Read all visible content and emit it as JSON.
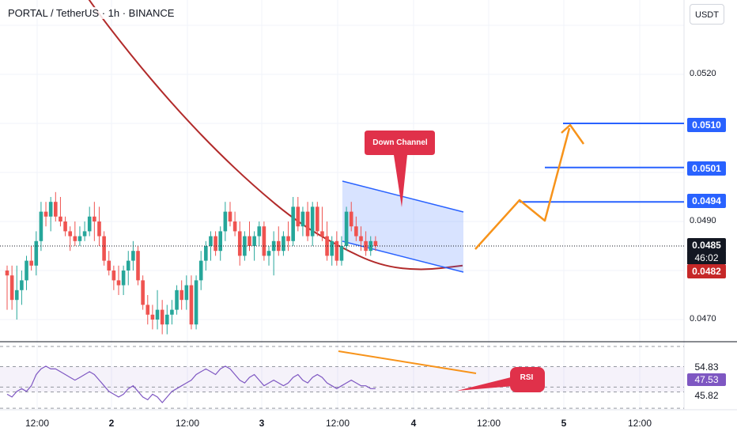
{
  "header": {
    "title": "PORTAL / TetherUS · 1h · BINANCE"
  },
  "currency_button": {
    "label": "USDT"
  },
  "price_axis": {
    "ticks": [
      {
        "value": 0.052,
        "label": "0.0520"
      },
      {
        "value": 0.049,
        "label": "0.0490"
      },
      {
        "value": 0.047,
        "label": "0.0470"
      }
    ],
    "tags": [
      {
        "label": "0.0510",
        "value": 0.051,
        "color": "#2962ff"
      },
      {
        "label": "0.0501",
        "value": 0.0501,
        "color": "#2962ff"
      },
      {
        "label": "0.0494",
        "value": 0.0494,
        "color": "#2962ff"
      },
      {
        "label": "0.0485",
        "value": 0.0485,
        "color": "#131722"
      },
      {
        "label": "0.0482",
        "value": 0.0482,
        "color": "#c62828"
      }
    ],
    "countdown": "46:02"
  },
  "time_axis": {
    "labels": [
      {
        "label": "12:00",
        "bold": false
      },
      {
        "label": "2",
        "bold": true
      },
      {
        "label": "12:00",
        "bold": false
      },
      {
        "label": "3",
        "bold": true
      },
      {
        "label": "12:00",
        "bold": false
      },
      {
        "label": "4",
        "bold": true
      },
      {
        "label": "12:00",
        "bold": false
      },
      {
        "label": "5",
        "bold": true
      },
      {
        "label": "12:00",
        "bold": false
      }
    ]
  },
  "annotations": {
    "down_channel": "Down Channel",
    "rsi": "RSI"
  },
  "rsi_axis": {
    "labels": [
      {
        "label": "54.83",
        "value": 54.83
      },
      {
        "label": "47.53",
        "value": 47.53,
        "highlight": true
      },
      {
        "label": "45.82",
        "value": 45.82
      }
    ]
  },
  "colors": {
    "bull": "#26a69a",
    "bear": "#ef5350",
    "ma": "#b22b2b",
    "channel": "#2962ff",
    "projection": "#f7931a",
    "rsi_line": "#7e57c2",
    "callout": "#e0314a"
  },
  "chart_data": {
    "type": "candlestick",
    "title": "PORTAL / TetherUS · 1h · BINANCE",
    "ylim": [
      0.0467,
      0.0535
    ],
    "ohlc": [
      [
        0.048,
        0.0481,
        0.0472,
        0.0479
      ],
      [
        0.0479,
        0.0481,
        0.0472,
        0.0474
      ],
      [
        0.0474,
        0.0481,
        0.047,
        0.0476
      ],
      [
        0.0476,
        0.048,
        0.0473,
        0.0478
      ],
      [
        0.0478,
        0.0483,
        0.0476,
        0.0482
      ],
      [
        0.0482,
        0.0485,
        0.048,
        0.0481
      ],
      [
        0.0481,
        0.0488,
        0.0479,
        0.0486
      ],
      [
        0.0486,
        0.0494,
        0.0484,
        0.0492
      ],
      [
        0.0492,
        0.0494,
        0.0489,
        0.0491
      ],
      [
        0.0491,
        0.0495,
        0.0488,
        0.0494
      ],
      [
        0.0494,
        0.0496,
        0.049,
        0.0491
      ],
      [
        0.0491,
        0.0495,
        0.0489,
        0.049
      ],
      [
        0.049,
        0.0491,
        0.0487,
        0.0488
      ],
      [
        0.0488,
        0.0489,
        0.0484,
        0.0487
      ],
      [
        0.0487,
        0.049,
        0.0485,
        0.0486
      ],
      [
        0.0486,
        0.0489,
        0.0485,
        0.0487
      ],
      [
        0.0487,
        0.049,
        0.0486,
        0.0488
      ],
      [
        0.0488,
        0.0493,
        0.0487,
        0.0491
      ],
      [
        0.0491,
        0.0494,
        0.0486,
        0.049
      ],
      [
        0.049,
        0.0493,
        0.0485,
        0.0487
      ],
      [
        0.0487,
        0.0488,
        0.0481,
        0.0482
      ],
      [
        0.0482,
        0.0484,
        0.0479,
        0.048
      ],
      [
        0.048,
        0.0481,
        0.0476,
        0.0478
      ],
      [
        0.0478,
        0.0481,
        0.0475,
        0.0477
      ],
      [
        0.0477,
        0.0481,
        0.0475,
        0.048
      ],
      [
        0.048,
        0.0484,
        0.0477,
        0.0482
      ],
      [
        0.0482,
        0.0486,
        0.048,
        0.0484
      ],
      [
        0.0484,
        0.0485,
        0.0477,
        0.0478
      ],
      [
        0.0478,
        0.0479,
        0.0472,
        0.0473
      ],
      [
        0.0473,
        0.0475,
        0.0469,
        0.0471
      ],
      [
        0.0471,
        0.0473,
        0.0468,
        0.047
      ],
      [
        0.047,
        0.0476,
        0.0468,
        0.0472
      ],
      [
        0.0472,
        0.0474,
        0.0467,
        0.0469
      ],
      [
        0.0469,
        0.0473,
        0.0467,
        0.0471
      ],
      [
        0.0471,
        0.0474,
        0.0469,
        0.0472
      ],
      [
        0.0472,
        0.0477,
        0.0471,
        0.0476
      ],
      [
        0.0476,
        0.0478,
        0.0472,
        0.0474
      ],
      [
        0.0474,
        0.0479,
        0.0472,
        0.0477
      ],
      [
        0.0477,
        0.0479,
        0.0468,
        0.0469
      ],
      [
        0.0469,
        0.0479,
        0.0468,
        0.0478
      ],
      [
        0.0478,
        0.0484,
        0.0476,
        0.0482
      ],
      [
        0.0482,
        0.0486,
        0.048,
        0.0485
      ],
      [
        0.0485,
        0.0488,
        0.0482,
        0.0487
      ],
      [
        0.0487,
        0.0488,
        0.0483,
        0.0484
      ],
      [
        0.0484,
        0.0489,
        0.0482,
        0.0488
      ],
      [
        0.0488,
        0.0494,
        0.0486,
        0.0492
      ],
      [
        0.0492,
        0.0494,
        0.0489,
        0.049
      ],
      [
        0.049,
        0.0492,
        0.0487,
        0.0488
      ],
      [
        0.0488,
        0.049,
        0.0481,
        0.0483
      ],
      [
        0.0483,
        0.0488,
        0.0482,
        0.0487
      ],
      [
        0.0487,
        0.049,
        0.0484,
        0.0485
      ],
      [
        0.0485,
        0.0488,
        0.0482,
        0.0487
      ],
      [
        0.0487,
        0.049,
        0.0485,
        0.0489
      ],
      [
        0.0489,
        0.049,
        0.0482,
        0.0483
      ],
      [
        0.0483,
        0.0485,
        0.0481,
        0.0484
      ],
      [
        0.0484,
        0.0488,
        0.0479,
        0.0486
      ],
      [
        0.0486,
        0.0489,
        0.0483,
        0.0484
      ],
      [
        0.0484,
        0.0488,
        0.0483,
        0.0487
      ],
      [
        0.0487,
        0.049,
        0.0484,
        0.0486
      ],
      [
        0.0486,
        0.0495,
        0.0485,
        0.0493
      ],
      [
        0.0493,
        0.0495,
        0.0488,
        0.0489
      ],
      [
        0.0489,
        0.0493,
        0.0487,
        0.0492
      ],
      [
        0.0492,
        0.0494,
        0.0486,
        0.0487
      ],
      [
        0.0487,
        0.0494,
        0.0485,
        0.0493
      ],
      [
        0.0493,
        0.0494,
        0.0487,
        0.0488
      ],
      [
        0.0488,
        0.0493,
        0.0486,
        0.0487
      ],
      [
        0.0487,
        0.049,
        0.0482,
        0.0483
      ],
      [
        0.0483,
        0.0487,
        0.0481,
        0.0486
      ],
      [
        0.0486,
        0.0488,
        0.0481,
        0.0482
      ],
      [
        0.0482,
        0.0487,
        0.0481,
        0.0485
      ],
      [
        0.0485,
        0.0493,
        0.0484,
        0.0492
      ],
      [
        0.0492,
        0.0494,
        0.0488,
        0.0489
      ],
      [
        0.0489,
        0.0491,
        0.0486,
        0.0487
      ],
      [
        0.0487,
        0.0489,
        0.0484,
        0.0486
      ],
      [
        0.0486,
        0.0488,
        0.0483,
        0.0484
      ],
      [
        0.0484,
        0.0487,
        0.0483,
        0.0486
      ],
      [
        0.0486,
        0.0487,
        0.0484,
        0.0485
      ]
    ],
    "moving_average": {
      "type": "line",
      "values": [
        0.0548,
        0.0535,
        0.0524,
        0.0514,
        0.0505,
        0.0497,
        0.049,
        0.0485,
        0.0481,
        0.048,
        0.0481
      ]
    },
    "rsi": {
      "type": "line",
      "ylim": [
        40,
        62
      ],
      "levels": [
        54.83,
        47.53,
        45.82
      ]
    }
  }
}
